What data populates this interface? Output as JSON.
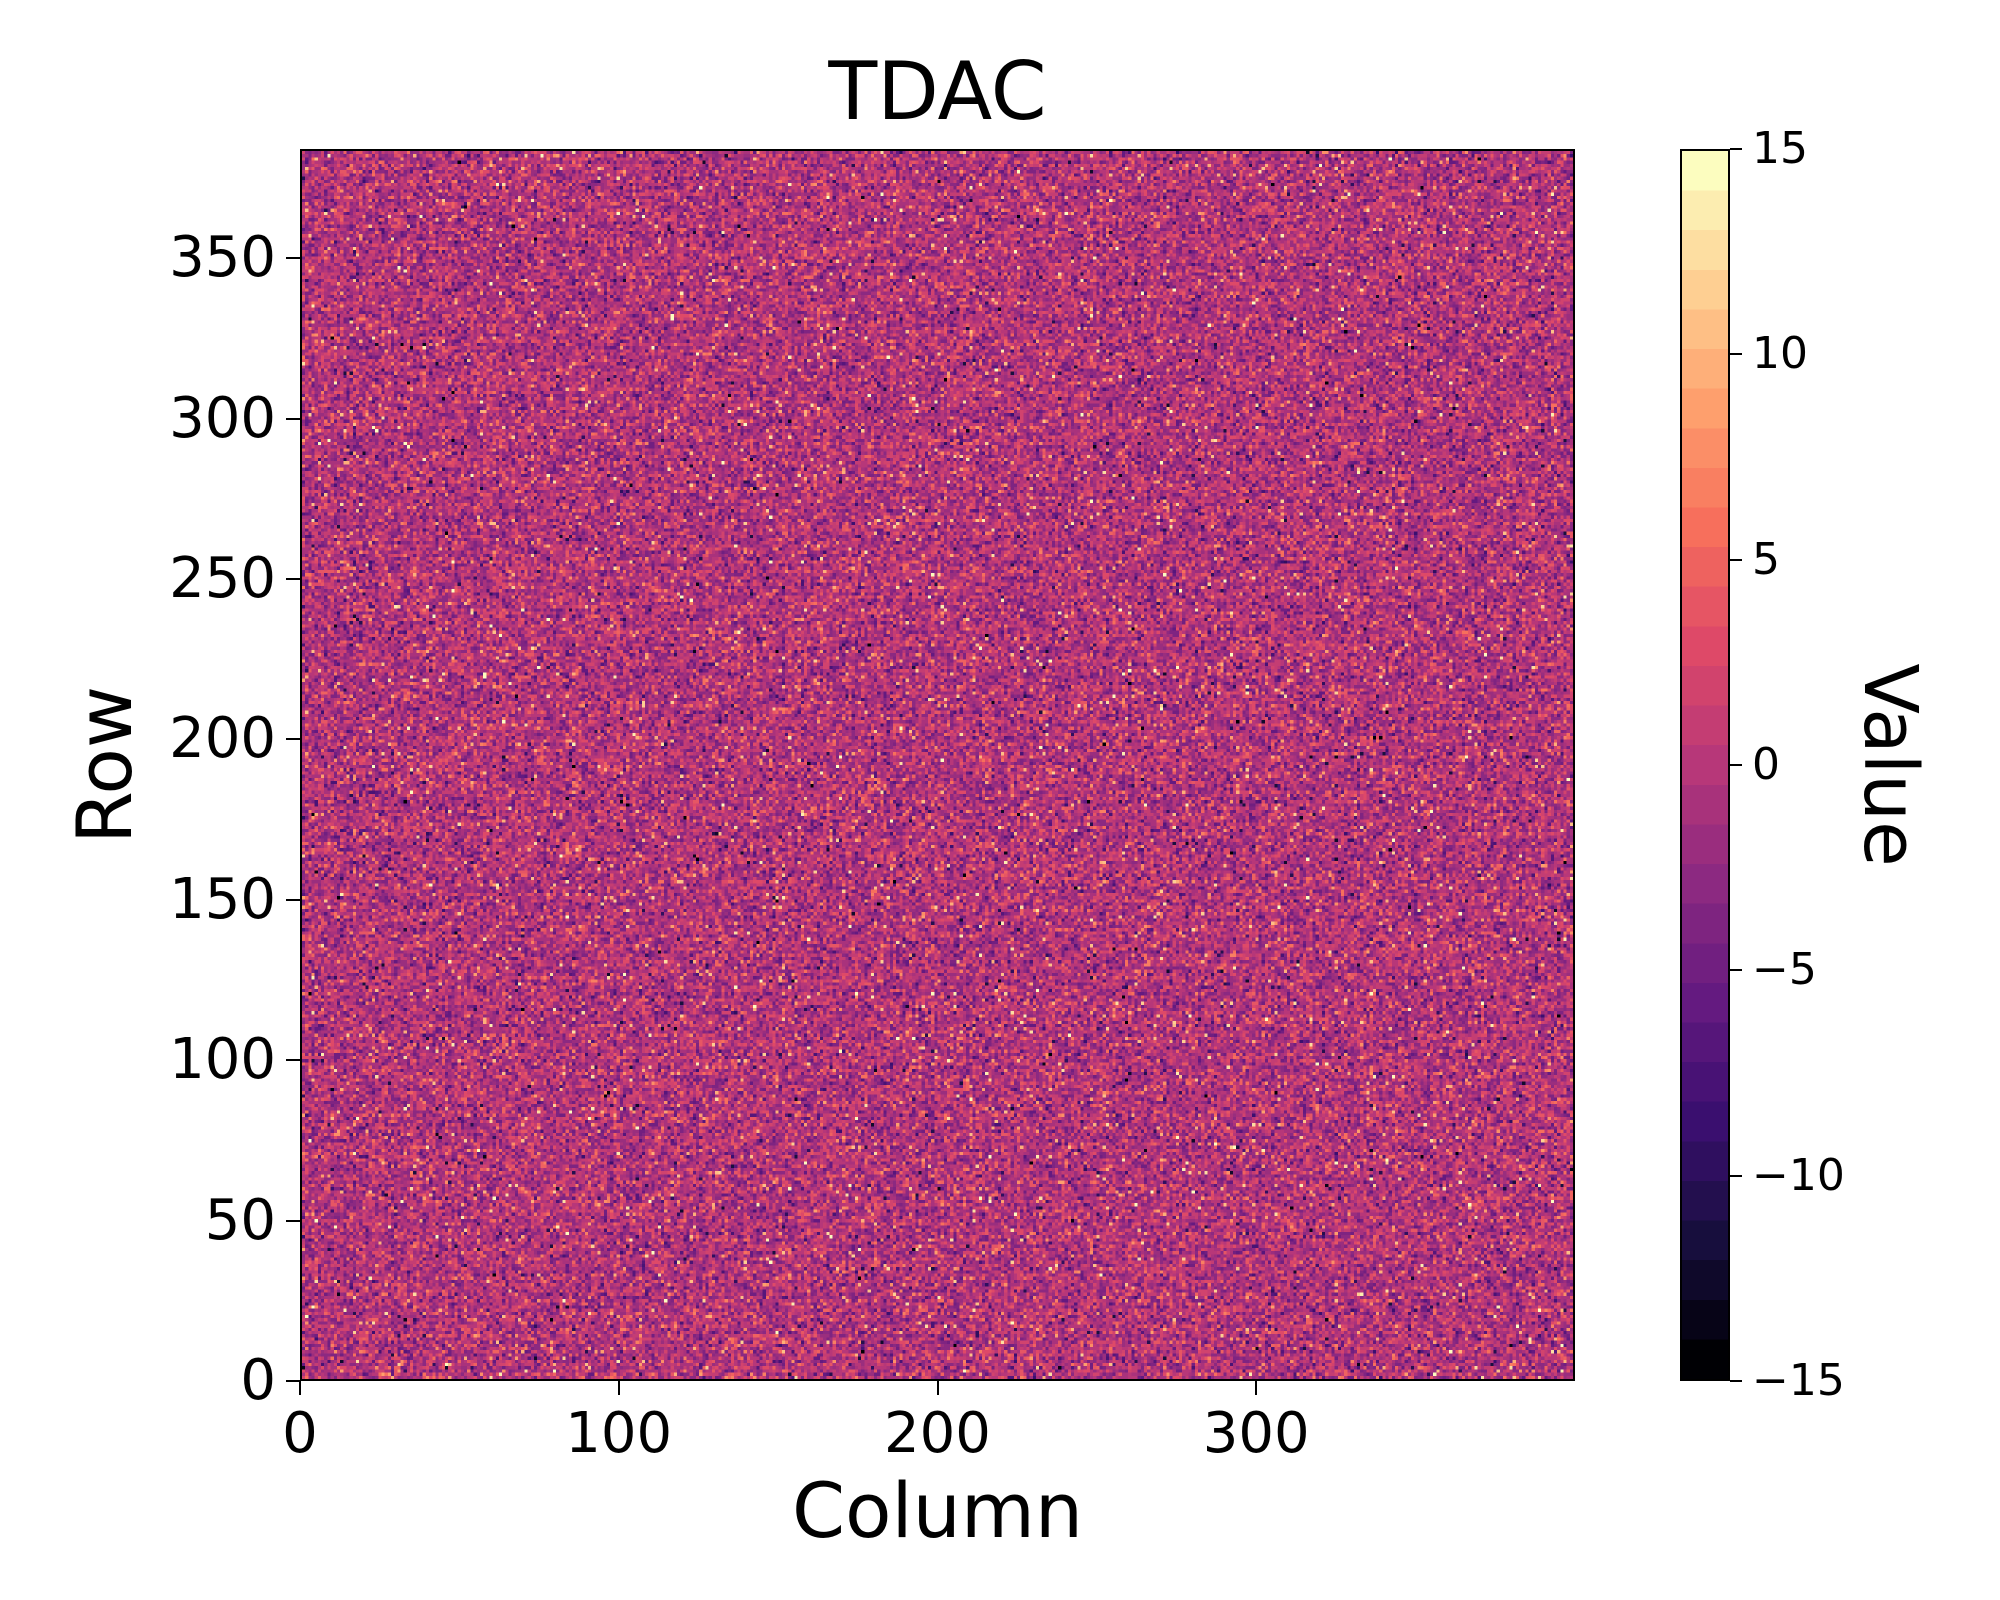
{
  "colors": {
    "background": "#ffffff",
    "text": "#000000",
    "spine": "#000000"
  },
  "chart_data": {
    "type": "heatmap",
    "title": "TDAC",
    "xlabel": "Column",
    "ylabel": "Row",
    "colorbar_label": "Value",
    "cols": 400,
    "rows": 384,
    "x_range": [
      0,
      400
    ],
    "y_range": [
      0,
      384
    ],
    "vmin": -15,
    "vmax": 15,
    "grid": false,
    "legend": "none",
    "colorbar_position": "right",
    "colorbar_levels": 31,
    "colormap": "magma",
    "colormap_stops": [
      [
        0.0,
        0,
        0,
        4
      ],
      [
        0.1,
        24,
        15,
        62
      ],
      [
        0.2,
        59,
        15,
        112
      ],
      [
        0.3,
        100,
        26,
        128
      ],
      [
        0.4,
        140,
        41,
        129
      ],
      [
        0.5,
        183,
        55,
        121
      ],
      [
        0.6,
        222,
        73,
        104
      ],
      [
        0.7,
        247,
        111,
        92
      ],
      [
        0.8,
        254,
        159,
        109
      ],
      [
        0.9,
        254,
        207,
        146
      ],
      [
        1.0,
        252,
        253,
        191
      ]
    ],
    "x_ticks": [
      {
        "v": 0,
        "label": "0"
      },
      {
        "v": 100,
        "label": "100"
      },
      {
        "v": 200,
        "label": "200"
      },
      {
        "v": 300,
        "label": "300"
      }
    ],
    "y_ticks": [
      {
        "v": 0,
        "label": "0"
      },
      {
        "v": 50,
        "label": "50"
      },
      {
        "v": 100,
        "label": "100"
      },
      {
        "v": 150,
        "label": "150"
      },
      {
        "v": 200,
        "label": "200"
      },
      {
        "v": 250,
        "label": "250"
      },
      {
        "v": 300,
        "label": "300"
      },
      {
        "v": 350,
        "label": "350"
      }
    ],
    "cb_ticks": [
      {
        "v": 15,
        "label": "15"
      },
      {
        "v": 10,
        "label": "10"
      },
      {
        "v": 5,
        "label": "5"
      },
      {
        "v": 0,
        "label": "0"
      },
      {
        "v": -5,
        "label": "−5"
      },
      {
        "v": -10,
        "label": "−10"
      },
      {
        "v": -15,
        "label": "−15"
      }
    ],
    "data_summary": {
      "description": "Per-pixel TDAC tuning map: dense uniform random speckle noise over a 400x384 matrix, integer values clipped to [-15, 15]; dominant magenta-purple field (values near 0) with scattered bright orange/cream and dark speckles",
      "mean": -0.5,
      "std": 3.0,
      "bright_outlier_fraction": 0.04,
      "dark_outlier_fraction": 0.015,
      "value_range": [
        -15,
        15
      ]
    },
    "seed": 1337
  }
}
